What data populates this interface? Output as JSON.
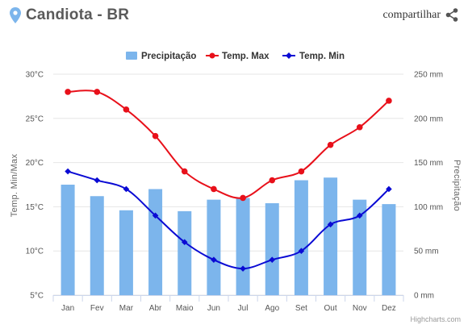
{
  "header": {
    "title": "Candiota - BR",
    "share_label": "compartilhar"
  },
  "colors": {
    "precip": "#7cb5ec",
    "tmax": "#e8101a",
    "tmin": "#0a0ad4",
    "grid": "#e6e6e6",
    "pin": "#7cb5ec"
  },
  "credits": "Highcharts.com",
  "chart_data": {
    "type": "bar",
    "categories": [
      "Jan",
      "Fev",
      "Mar",
      "Abr",
      "Maio",
      "Jun",
      "Jul",
      "Ago",
      "Set",
      "Out",
      "Nov",
      "Dez"
    ],
    "series": [
      {
        "name": "Precipitação",
        "type": "bar",
        "axis": "right",
        "values": [
          125,
          112,
          96,
          120,
          95,
          108,
          110,
          104,
          130,
          133,
          108,
          103
        ]
      },
      {
        "name": "Temp. Max",
        "type": "line",
        "axis": "left",
        "values": [
          28,
          28,
          26,
          23,
          19,
          17,
          16,
          18,
          19,
          22,
          24,
          27
        ]
      },
      {
        "name": "Temp. Min",
        "type": "line",
        "axis": "left",
        "values": [
          19,
          18,
          17,
          14,
          11,
          9,
          8,
          9,
          10,
          13,
          14,
          17
        ]
      }
    ],
    "ylabel_left": "Temp. Min/Max",
    "ylabel_right": "Precipitação",
    "ylim_left": [
      5,
      30
    ],
    "ylim_right": [
      0,
      250
    ],
    "yticks_left": [
      "5°C",
      "10°C",
      "15°C",
      "20°C",
      "25°C",
      "30°C"
    ],
    "yticks_right": [
      "0 mm",
      "50 mm",
      "100 mm",
      "150 mm",
      "200 mm",
      "250 mm"
    ],
    "grid": true,
    "legend": "top-center"
  }
}
